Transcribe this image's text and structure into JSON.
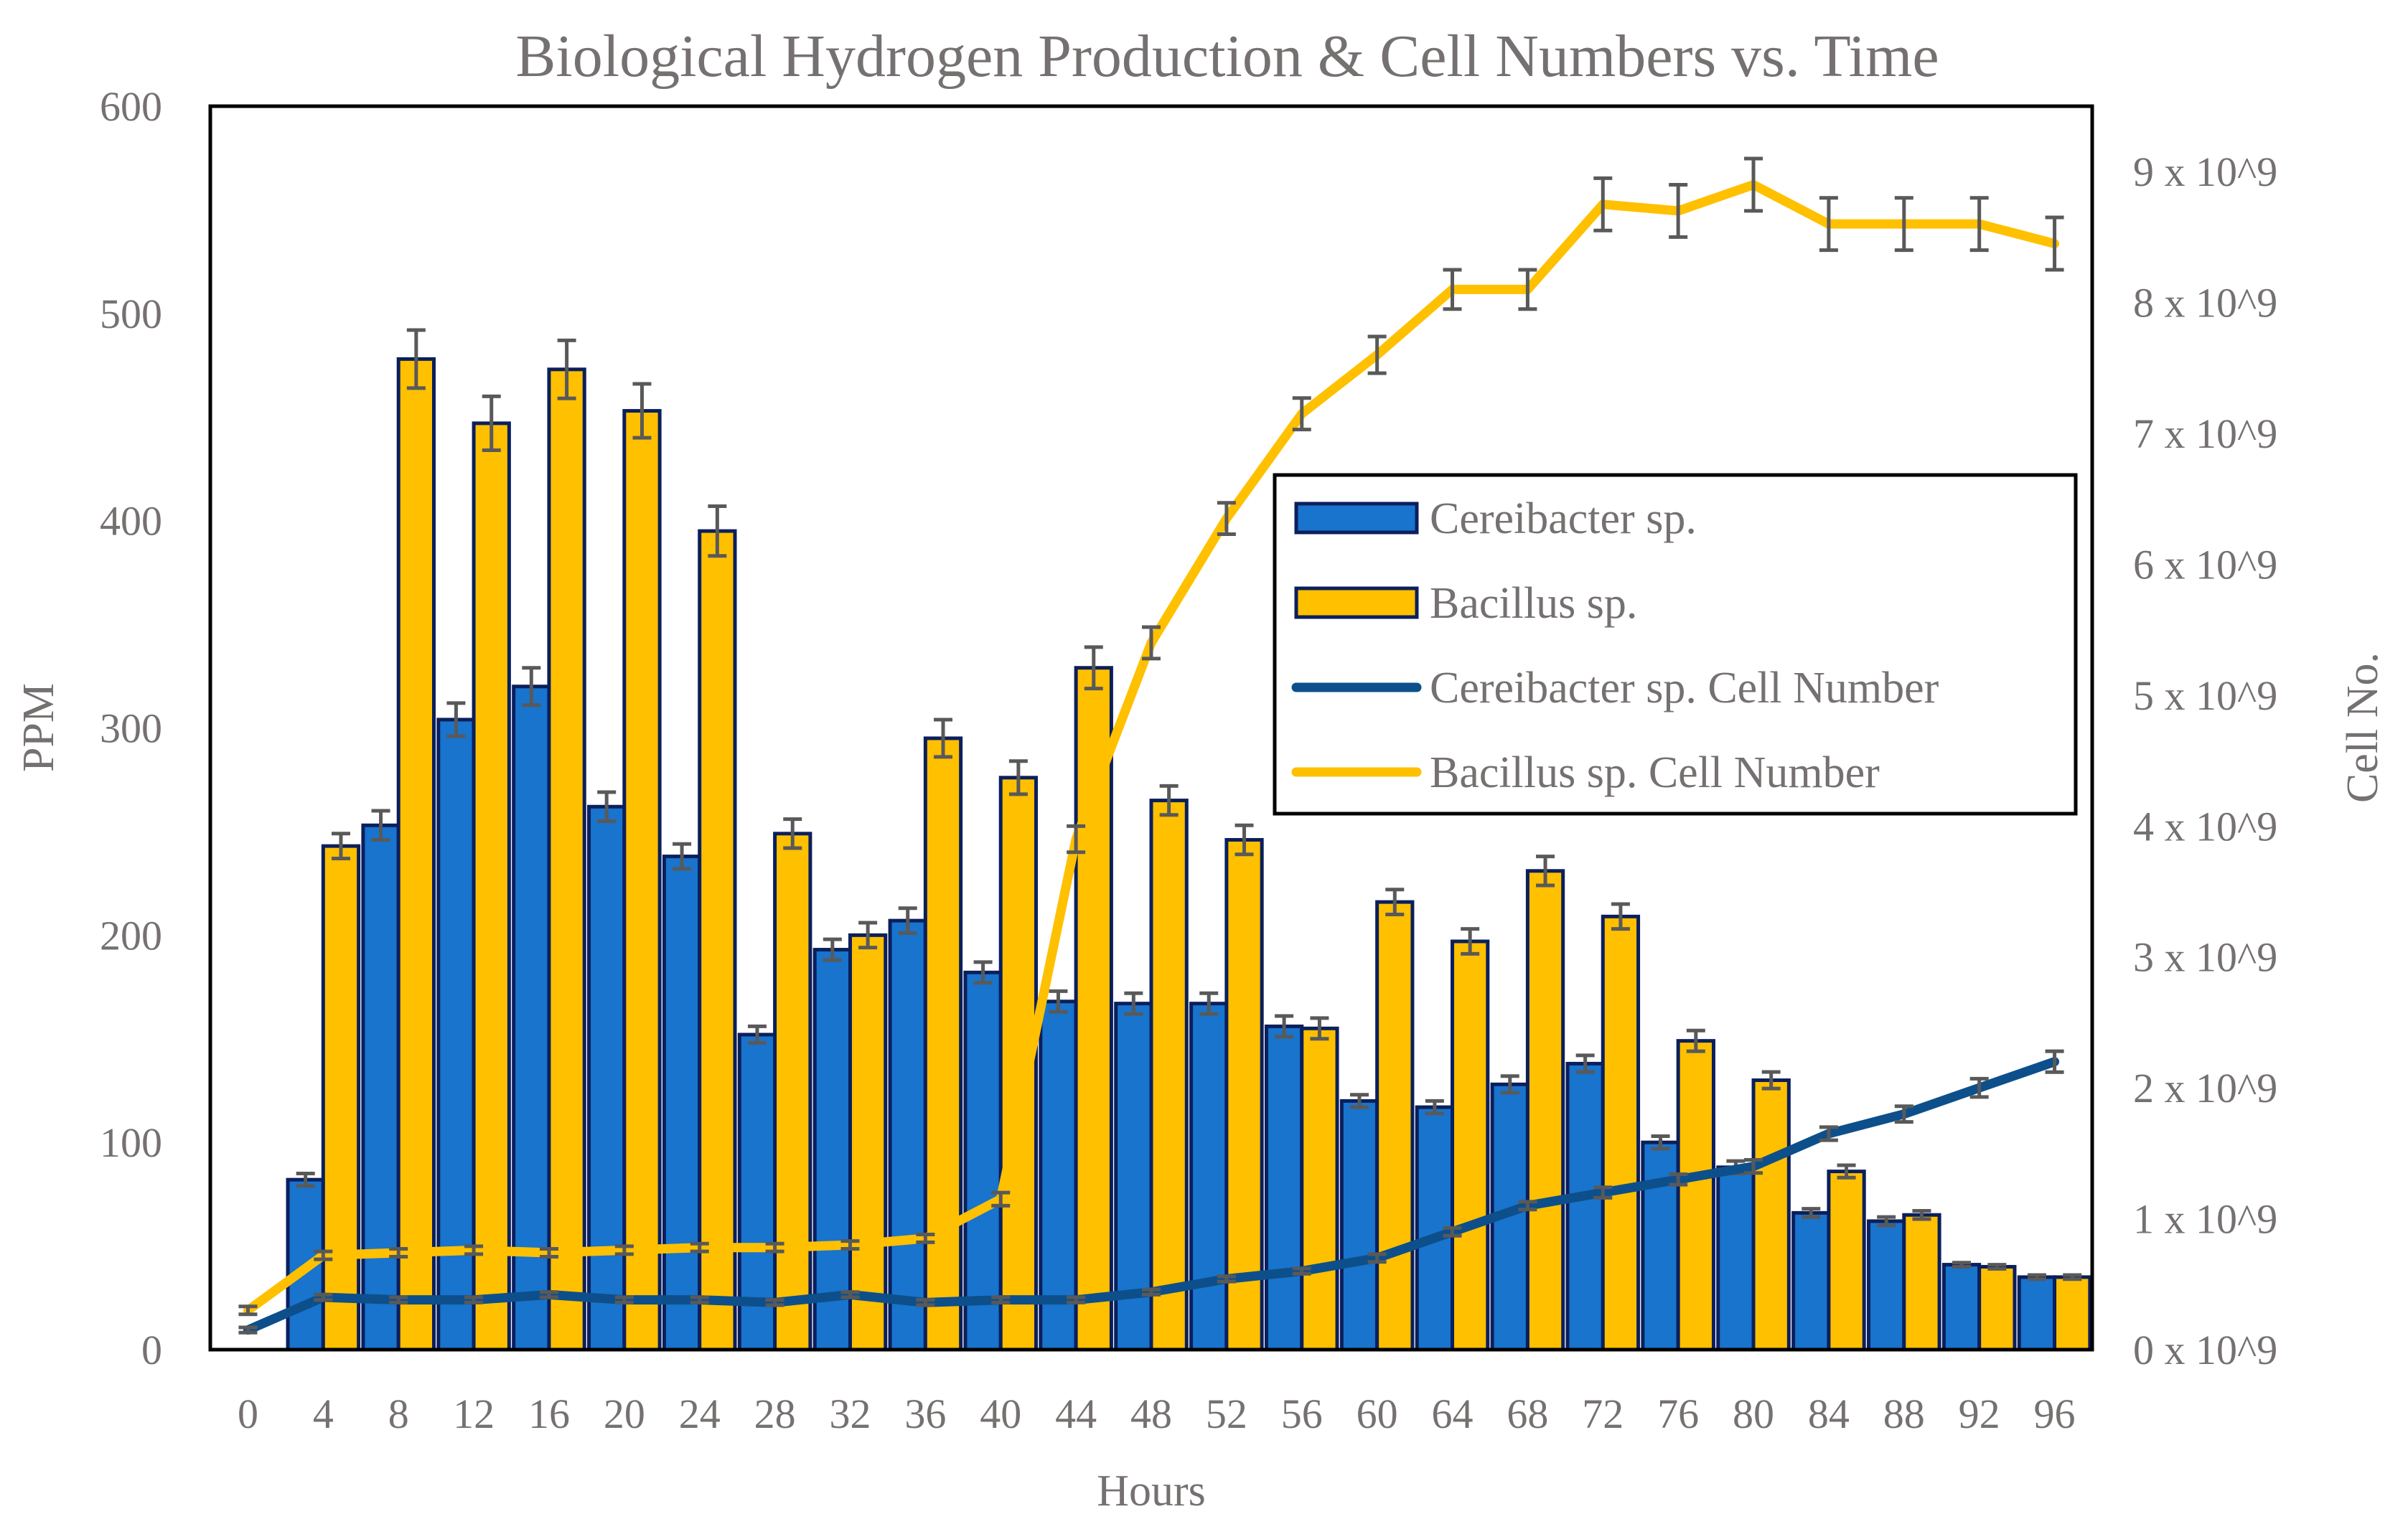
{
  "chart_data": {
    "type": "bar+line",
    "title": "Biological Hydrogen Production & Cell Numbers vs. Time",
    "xlabel": "Hours",
    "ylabel": "PPM",
    "y2label": "Cell No.",
    "ylim": [
      0,
      600
    ],
    "y2lim": [
      0,
      9.5
    ],
    "y2_unit_label": "x 10^9",
    "categories": [
      0,
      4,
      8,
      12,
      16,
      20,
      24,
      28,
      32,
      36,
      40,
      44,
      48,
      52,
      56,
      60,
      64,
      68,
      72,
      76,
      80,
      84,
      88,
      92,
      96
    ],
    "yticks": [
      0,
      100,
      200,
      300,
      400,
      500,
      600
    ],
    "y2ticks": [
      0,
      1,
      2,
      3,
      4,
      5,
      6,
      7,
      8,
      9
    ],
    "y2tick_labels": [
      "0 x 10^9",
      "1 x 10^9",
      "2 x 10^9",
      "3 x 10^9",
      "4 x 10^9",
      "5 x 10^9",
      "6 x 10^9",
      "7 x 10^9",
      "8 x 10^9",
      "9 x 10^9"
    ],
    "series": [
      {
        "name": "Cereibacter sp.",
        "kind": "bar",
        "axis": "left",
        "color": "#1874CD",
        "edge": "#0B1F5C",
        "values": [
          0,
          82,
          253,
          304,
          320,
          262,
          238,
          152,
          193,
          207,
          182,
          168,
          167,
          167,
          156,
          120,
          117,
          128,
          138,
          100,
          88,
          66,
          62,
          41,
          35
        ],
        "errors": [
          0,
          3,
          7,
          8,
          9,
          7,
          6,
          4,
          5,
          6,
          5,
          5,
          5,
          5,
          5,
          3,
          3,
          4,
          4,
          3,
          3,
          2,
          2,
          1,
          1
        ]
      },
      {
        "name": "Bacillus sp.",
        "kind": "bar",
        "axis": "left",
        "color": "#FFC000",
        "edge": "#0B1F5C",
        "values": [
          0,
          243,
          478,
          447,
          473,
          453,
          395,
          249,
          200,
          295,
          276,
          329,
          265,
          246,
          155,
          216,
          197,
          231,
          209,
          149,
          130,
          86,
          65,
          40,
          35
        ],
        "errors": [
          0,
          6,
          14,
          13,
          14,
          13,
          12,
          7,
          6,
          9,
          8,
          10,
          7,
          7,
          5,
          6,
          6,
          7,
          6,
          5,
          4,
          3,
          2,
          1,
          1
        ]
      },
      {
        "name": "Cereibacter sp. Cell Number",
        "kind": "line",
        "axis": "right",
        "color": "#0D4F8B",
        "values": [
          0.15,
          0.4,
          0.38,
          0.38,
          0.42,
          0.38,
          0.38,
          0.36,
          0.42,
          0.36,
          0.38,
          0.38,
          0.44,
          0.54,
          0.6,
          0.7,
          0.9,
          1.1,
          1.2,
          1.3,
          1.4,
          1.65,
          1.8,
          2.0,
          2.2
        ],
        "errors": [
          0.02,
          0.02,
          0.02,
          0.02,
          0.02,
          0.02,
          0.02,
          0.02,
          0.02,
          0.02,
          0.02,
          0.02,
          0.02,
          0.02,
          0.02,
          0.03,
          0.03,
          0.03,
          0.04,
          0.04,
          0.05,
          0.05,
          0.06,
          0.07,
          0.08
        ]
      },
      {
        "name": "Bacillus sp. Cell Number",
        "kind": "line",
        "axis": "right",
        "color": "#FFC000",
        "values": [
          0.3,
          0.72,
          0.74,
          0.76,
          0.74,
          0.76,
          0.78,
          0.78,
          0.8,
          0.85,
          1.15,
          3.9,
          5.4,
          6.35,
          7.15,
          7.6,
          8.1,
          8.1,
          8.75,
          8.7,
          8.9,
          8.6,
          8.6,
          8.6,
          8.45
        ],
        "errors": [
          0.03,
          0.03,
          0.03,
          0.03,
          0.03,
          0.03,
          0.03,
          0.03,
          0.03,
          0.03,
          0.05,
          0.1,
          0.12,
          0.12,
          0.12,
          0.14,
          0.15,
          0.15,
          0.2,
          0.2,
          0.2,
          0.2,
          0.2,
          0.2,
          0.2
        ]
      }
    ],
    "legend": {
      "position": "upper-right inside plot",
      "entries": [
        "Cereibacter sp.",
        "Bacillus sp.",
        "Cereibacter sp. Cell Number",
        "Bacillus sp. Cell Number"
      ]
    },
    "colors": {
      "text": "#767171",
      "frame": "#000000",
      "error_bar": "#595959"
    }
  }
}
